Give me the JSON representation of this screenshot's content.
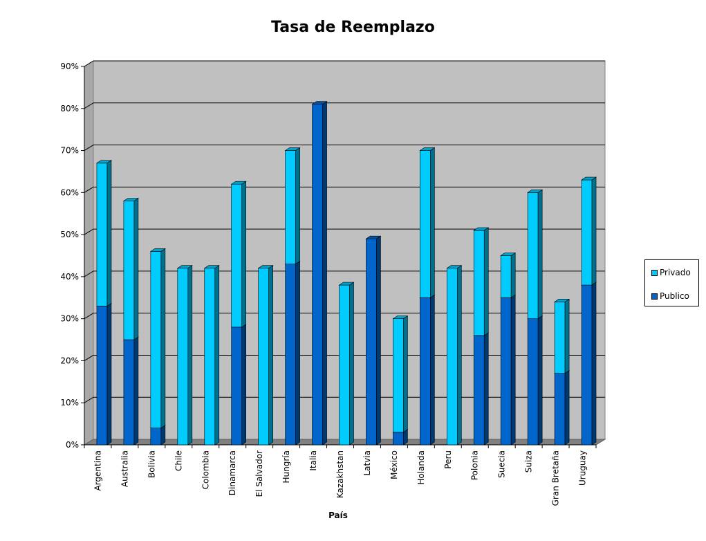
{
  "chart_data": {
    "type": "bar",
    "stacked": true,
    "style": "3d",
    "title": "Tasa de Reemplazo",
    "xlabel": "País",
    "ylabel": "",
    "ylim": [
      0,
      90
    ],
    "yticks": [
      "0%",
      "10%",
      "20%",
      "30%",
      "40%",
      "50%",
      "60%",
      "70%",
      "80%",
      "90%"
    ],
    "grid": true,
    "legend_position": "right",
    "categories": [
      "Argentina",
      "Australia",
      "Bolivia",
      "Chile",
      "Colombia",
      "Dinamarca",
      "El Salvador",
      "Hungría",
      "Italia",
      "Kazakhstan",
      "Latvia",
      "México",
      "Holanda",
      "Peru",
      "Polonia",
      "Suecia",
      "Suiza",
      "Gran Bretaña",
      "Uruguay"
    ],
    "series": [
      {
        "name": "Publico",
        "color": "#0066cc",
        "values": [
          33,
          25,
          4,
          0,
          0,
          28,
          0,
          43,
          81,
          0,
          49,
          3,
          35,
          0,
          26,
          35,
          30,
          17,
          38
        ]
      },
      {
        "name": "Privado",
        "color": "#00ccff",
        "values": [
          34,
          33,
          42,
          42,
          42,
          34,
          42,
          27,
          0,
          38,
          0,
          27,
          35,
          42,
          25,
          10,
          30,
          17,
          25
        ]
      }
    ],
    "legend_order": [
      "Privado",
      "Publico"
    ],
    "colors": {
      "wall": "#c0c0c0",
      "floor": "#808080",
      "gridline": "#000000"
    }
  }
}
